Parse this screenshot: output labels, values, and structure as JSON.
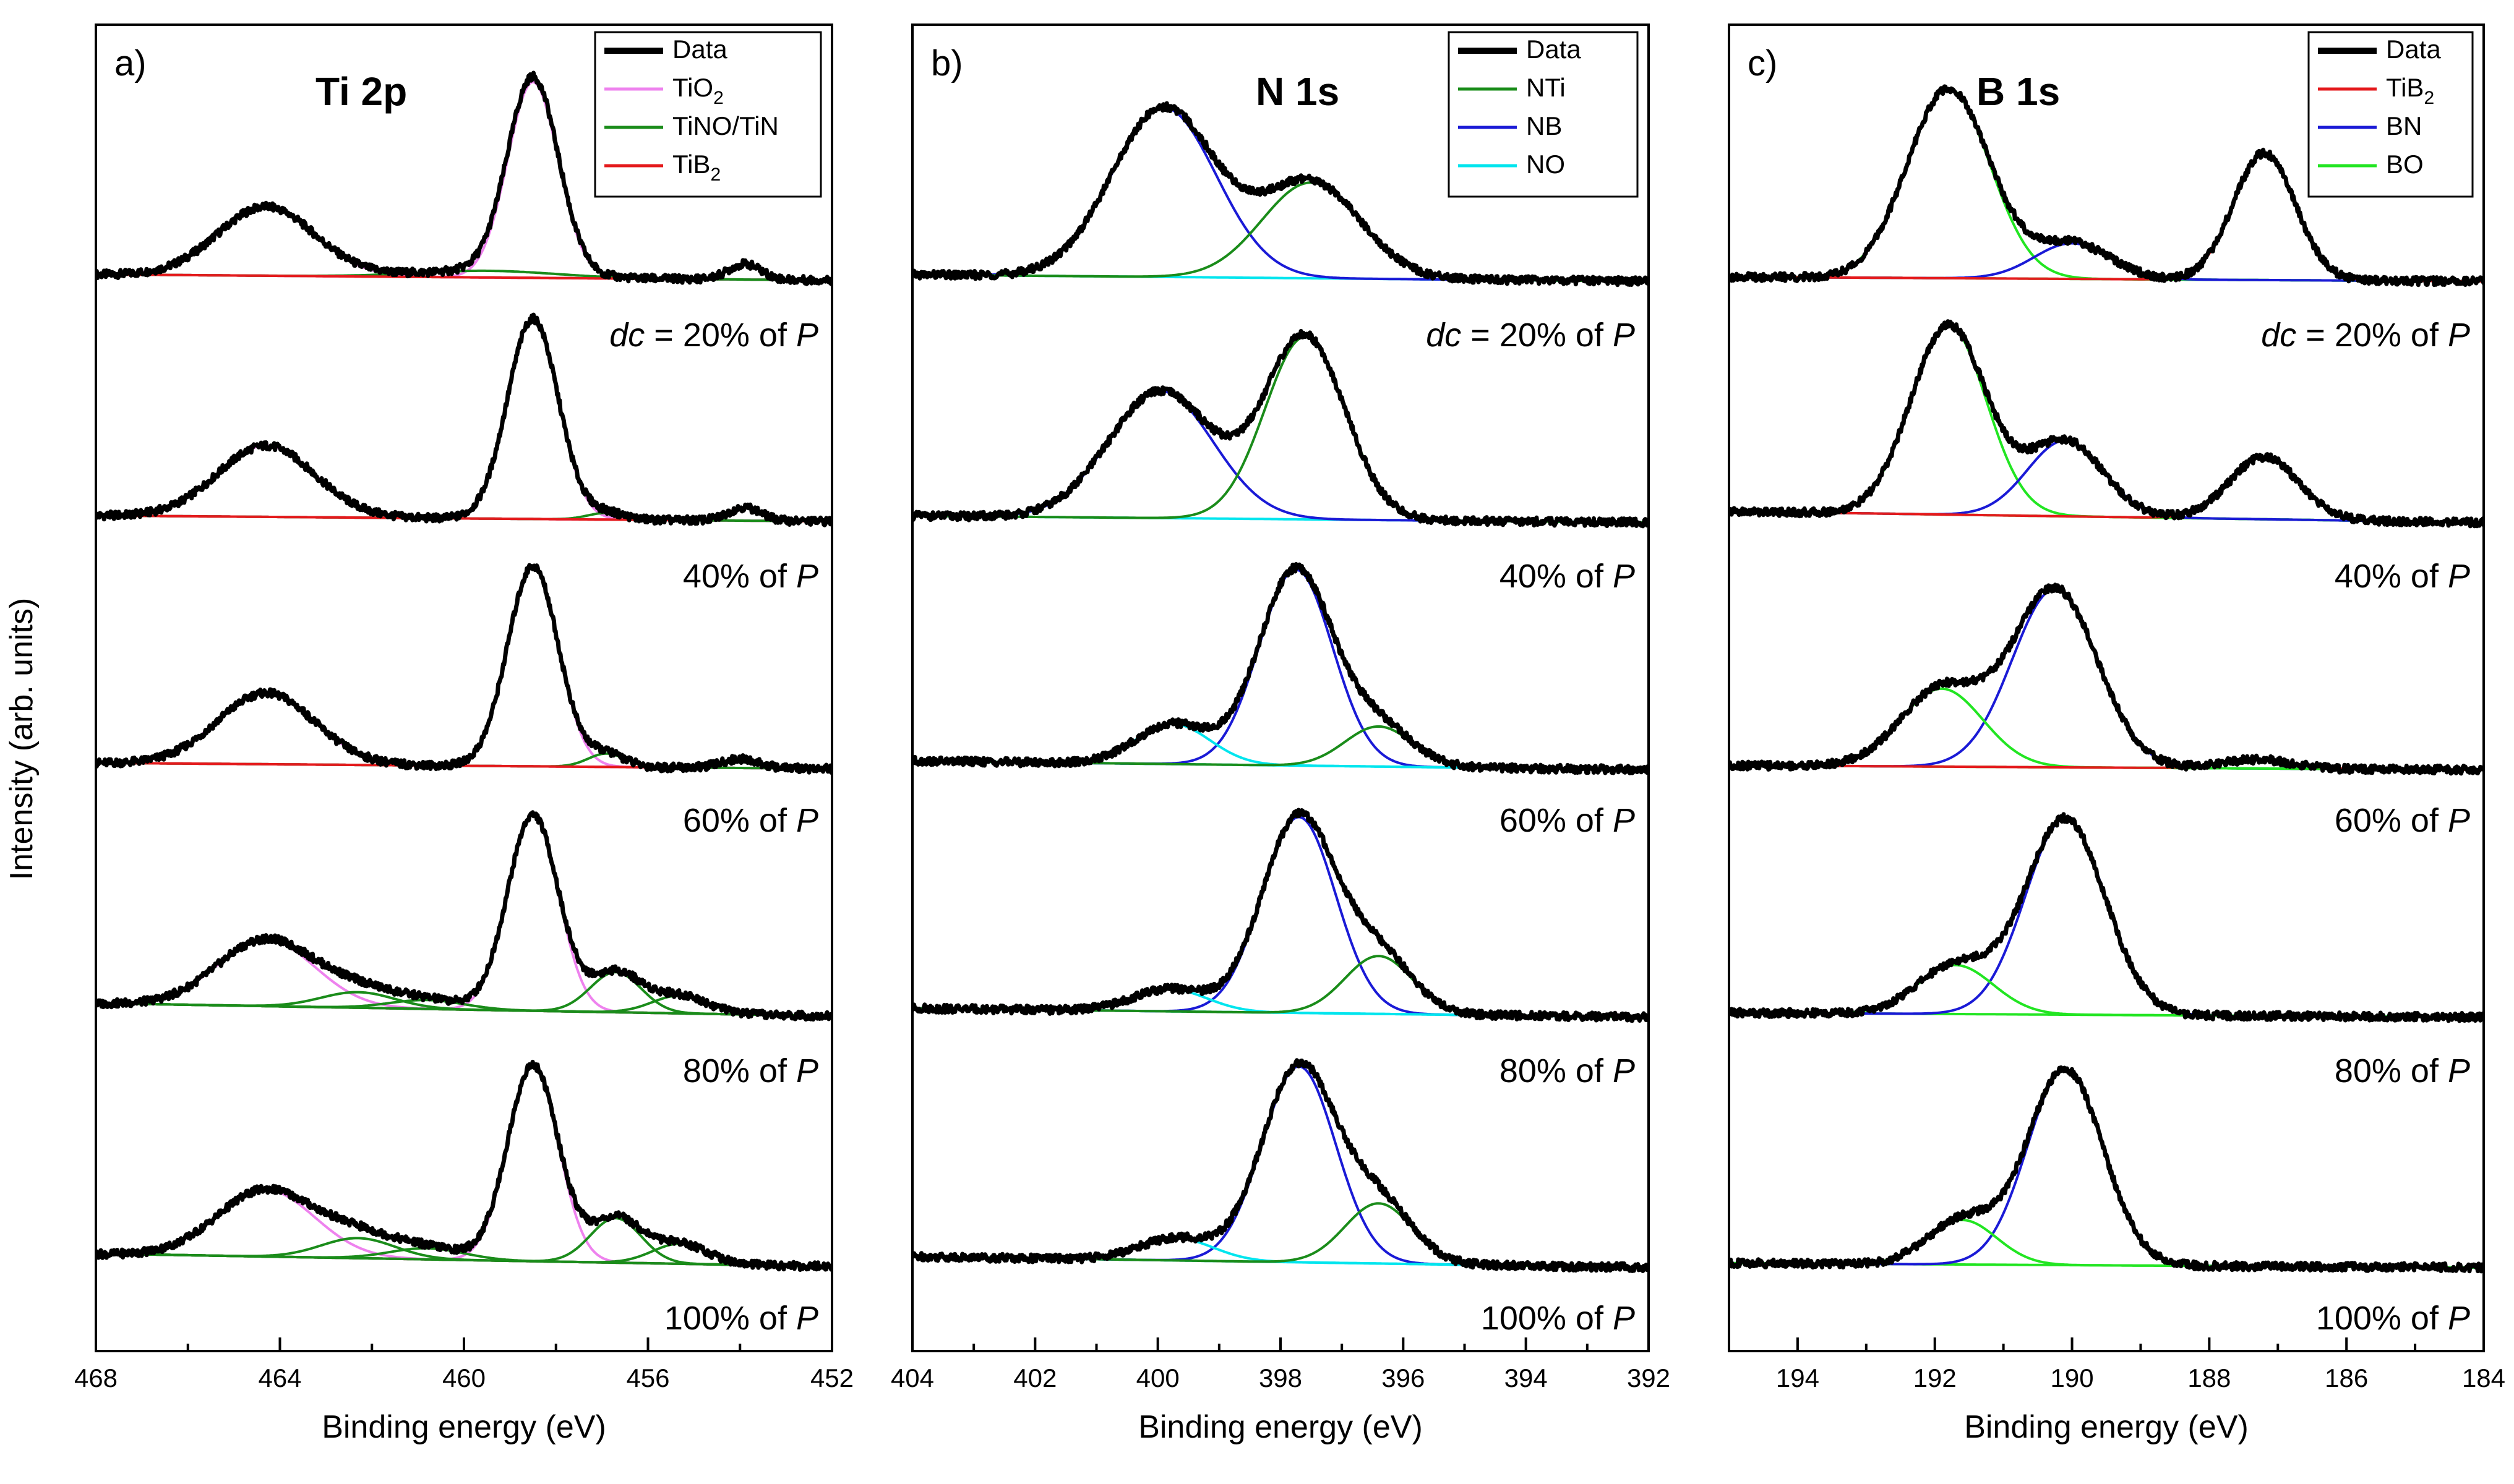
{
  "chart_data": {
    "type": "line",
    "ylabel": "Intensity (arb. units)",
    "trace_labels": [
      {
        "italic_prefix": "dc",
        "text": " = 20% of ",
        "italic_suffix": "P"
      },
      {
        "italic_prefix": "",
        "text": "40% of ",
        "italic_suffix": "P"
      },
      {
        "italic_prefix": "",
        "text": "60% of ",
        "italic_suffix": "P"
      },
      {
        "italic_prefix": "",
        "text": "80% of ",
        "italic_suffix": "P"
      },
      {
        "italic_prefix": "",
        "text": "100% of ",
        "italic_suffix": "P"
      }
    ],
    "panels": [
      {
        "letter": "a)",
        "title": "Ti 2p",
        "xlabel": "Binding energy (eV)",
        "xlim": [
          468,
          452
        ],
        "xticks": [
          468,
          464,
          460,
          456,
          452
        ],
        "legend": [
          {
            "label": "Data",
            "sub": "",
            "color": "#000000"
          },
          {
            "label": "TiO",
            "sub": "2",
            "color": "#ee82ee"
          },
          {
            "label": "TiNO/TiN",
            "sub": "",
            "color": "#1a8c1a"
          },
          {
            "label": "TiB",
            "sub": "2",
            "color": "#e41a1c"
          }
        ],
        "background_color": "#e41a1c",
        "traces": [
          {
            "bg": [
              [
                467.2,
                0.03
              ],
              [
                452,
                0.005
              ]
            ],
            "peaks": [
              {
                "comp": "TiO2",
                "color": "#ee82ee",
                "center": 458.5,
                "height": 0.88,
                "width": 0.55
              },
              {
                "comp": "TiO2",
                "color": "#ee82ee",
                "center": 464.3,
                "height": 0.31,
                "width": 1.05
              },
              {
                "comp": "TiNO/TiN",
                "color": "#1a8c1a",
                "center": 459.5,
                "height": 0.03,
                "width": 1.5
              },
              {
                "comp": "TiB2",
                "color": "#e41a1c",
                "center": 453.9,
                "height": 0.07,
                "width": 0.35
              }
            ]
          },
          {
            "bg": [
              [
                467.2,
                0.03
              ],
              [
                452,
                0.005
              ]
            ],
            "peaks": [
              {
                "comp": "TiO2",
                "color": "#ee82ee",
                "center": 458.5,
                "height": 0.9,
                "width": 0.55
              },
              {
                "comp": "TiO2",
                "color": "#ee82ee",
                "center": 464.3,
                "height": 0.32,
                "width": 1.05
              },
              {
                "comp": "TiNO/TiN",
                "color": "#1a8c1a",
                "center": 456.9,
                "height": 0.03,
                "width": 0.4
              },
              {
                "comp": "TiB2",
                "color": "#e41a1c",
                "center": 453.9,
                "height": 0.06,
                "width": 0.35
              }
            ]
          },
          {
            "bg": [
              [
                467.2,
                0.03
              ],
              [
                452,
                0.005
              ]
            ],
            "peaks": [
              {
                "comp": "TiO2",
                "color": "#ee82ee",
                "center": 458.5,
                "height": 0.9,
                "width": 0.55
              },
              {
                "comp": "TiO2",
                "color": "#ee82ee",
                "center": 464.3,
                "height": 0.32,
                "width": 1.05
              },
              {
                "comp": "TiNO/TiN",
                "color": "#1a8c1a",
                "center": 456.9,
                "height": 0.06,
                "width": 0.4
              },
              {
                "comp": "TiB2",
                "color": "#e41a1c",
                "center": 454.0,
                "height": 0.04,
                "width": 0.4
              }
            ]
          },
          {
            "bg": [
              [
                467.2,
                0.06
              ],
              [
                452,
                0.005
              ]
            ],
            "peaks": [
              {
                "comp": "TiO2",
                "color": "#ee82ee",
                "center": 458.5,
                "height": 0.88,
                "width": 0.55
              },
              {
                "comp": "TiO2",
                "color": "#ee82ee",
                "center": 464.3,
                "height": 0.3,
                "width": 1.05
              },
              {
                "comp": "TiNO/TiN",
                "color": "#1a8c1a",
                "center": 456.7,
                "height": 0.18,
                "width": 0.55
              },
              {
                "comp": "TiNO/TiN",
                "color": "#1a8c1a",
                "center": 462.3,
                "height": 0.07,
                "width": 0.8
              },
              {
                "comp": "TiNO/TiN",
                "color": "#1a8c1a",
                "center": 455.3,
                "height": 0.08,
                "width": 0.6
              },
              {
                "comp": "TiNO/TiN",
                "color": "#1a8c1a",
                "center": 460.8,
                "height": 0.04,
                "width": 0.8
              }
            ]
          },
          {
            "bg": [
              [
                467.2,
                0.06
              ],
              [
                452,
                0.005
              ]
            ],
            "peaks": [
              {
                "comp": "TiO2",
                "color": "#ee82ee",
                "center": 458.5,
                "height": 0.88,
                "width": 0.55
              },
              {
                "comp": "TiO2",
                "color": "#ee82ee",
                "center": 464.3,
                "height": 0.3,
                "width": 1.05
              },
              {
                "comp": "TiNO/TiN",
                "color": "#1a8c1a",
                "center": 456.7,
                "height": 0.2,
                "width": 0.55
              },
              {
                "comp": "TiNO/TiN",
                "color": "#1a8c1a",
                "center": 462.3,
                "height": 0.09,
                "width": 0.8
              },
              {
                "comp": "TiNO/TiN",
                "color": "#1a8c1a",
                "center": 455.3,
                "height": 0.09,
                "width": 0.6
              },
              {
                "comp": "TiNO/TiN",
                "color": "#1a8c1a",
                "center": 460.8,
                "height": 0.05,
                "width": 0.8
              }
            ]
          }
        ]
      },
      {
        "letter": "b)",
        "title": "N 1s",
        "xlabel": "Binding energy (eV)",
        "xlim": [
          404,
          392
        ],
        "xticks": [
          404,
          402,
          400,
          398,
          396,
          394,
          392
        ],
        "legend": [
          {
            "label": "Data",
            "sub": "",
            "color": "#000000"
          },
          {
            "label": "NTi",
            "sub": "",
            "color": "#1a8c1a"
          },
          {
            "label": "NB",
            "sub": "",
            "color": "#1a1ad6"
          },
          {
            "label": "NO",
            "sub": "",
            "color": "#00e5ee"
          }
        ],
        "background_color": "#00e5ee",
        "traces": [
          {
            "bg": [
              [
                404,
                0.03
              ],
              [
                392,
                0.0
              ]
            ],
            "peaks": [
              {
                "comp": "NB",
                "color": "#1a1ad6",
                "center": 399.9,
                "height": 0.76,
                "width": 0.85
              },
              {
                "comp": "NTi",
                "color": "#1a8c1a",
                "center": 397.5,
                "height": 0.43,
                "width": 0.8
              }
            ]
          },
          {
            "bg": [
              [
                404,
                0.03
              ],
              [
                392,
                0.0
              ]
            ],
            "peaks": [
              {
                "comp": "NB",
                "color": "#1a1ad6",
                "center": 399.95,
                "height": 0.57,
                "width": 0.85
              },
              {
                "comp": "NTi",
                "color": "#1a8c1a",
                "center": 397.6,
                "height": 0.82,
                "width": 0.65
              }
            ]
          },
          {
            "bg": [
              [
                404,
                0.04
              ],
              [
                392,
                0.0
              ]
            ],
            "peaks": [
              {
                "comp": "NB",
                "color": "#1a1ad6",
                "center": 397.75,
                "height": 0.88,
                "width": 0.6
              },
              {
                "comp": "NO",
                "color": "#00e5ee",
                "center": 399.75,
                "height": 0.18,
                "width": 0.6
              },
              {
                "comp": "NTi",
                "color": "#1a8c1a",
                "center": 396.4,
                "height": 0.18,
                "width": 0.55
              }
            ]
          },
          {
            "bg": [
              [
                404,
                0.04
              ],
              [
                392,
                0.0
              ]
            ],
            "peaks": [
              {
                "comp": "NB",
                "color": "#1a1ad6",
                "center": 397.7,
                "height": 0.88,
                "width": 0.6
              },
              {
                "comp": "NO",
                "color": "#00e5ee",
                "center": 399.8,
                "height": 0.1,
                "width": 0.6
              },
              {
                "comp": "NTi",
                "color": "#1a8c1a",
                "center": 396.4,
                "height": 0.26,
                "width": 0.55
              }
            ]
          },
          {
            "bg": [
              [
                404,
                0.05
              ],
              [
                392,
                0.0
              ]
            ],
            "peaks": [
              {
                "comp": "NB",
                "color": "#1a1ad6",
                "center": 397.7,
                "height": 0.88,
                "width": 0.6
              },
              {
                "comp": "NO",
                "color": "#00e5ee",
                "center": 399.7,
                "height": 0.1,
                "width": 0.6
              },
              {
                "comp": "NTi",
                "color": "#1a8c1a",
                "center": 396.4,
                "height": 0.27,
                "width": 0.55
              }
            ]
          }
        ]
      },
      {
        "letter": "c)",
        "title": "B 1s",
        "xlabel": "Binding energy (eV)",
        "xlim": [
          195,
          184
        ],
        "xticks": [
          194,
          192,
          190,
          188,
          186,
          184
        ],
        "legend": [
          {
            "label": "Data",
            "sub": "",
            "color": "#000000"
          },
          {
            "label": "TiB",
            "sub": "2",
            "color": "#e41a1c"
          },
          {
            "label": "BN",
            "sub": "",
            "color": "#1a1ad6"
          },
          {
            "label": "BO",
            "sub": "",
            "color": "#22e522"
          }
        ],
        "background_color": "#22e522",
        "traces": [
          {
            "bg": [
              [
                195,
                0.02
              ],
              [
                184,
                0.0
              ]
            ],
            "peaks": [
              {
                "comp": "BO",
                "color": "#22e522",
                "center": 191.8,
                "height": 0.85,
                "width": 0.6
              },
              {
                "comp": "BN",
                "color": "#1a1ad6",
                "center": 190.0,
                "height": 0.16,
                "width": 0.55
              },
              {
                "comp": "TiB2",
                "color": "#e41a1c",
                "center": 187.2,
                "height": 0.57,
                "width": 0.45
              }
            ]
          },
          {
            "bg": [
              [
                195,
                0.05
              ],
              [
                184,
                0.0
              ]
            ],
            "peaks": [
              {
                "comp": "BO",
                "color": "#22e522",
                "center": 191.8,
                "height": 0.85,
                "width": 0.55
              },
              {
                "comp": "BN",
                "color": "#1a1ad6",
                "center": 190.1,
                "height": 0.34,
                "width": 0.55
              },
              {
                "comp": "TiB2",
                "color": "#e41a1c",
                "center": 187.2,
                "height": 0.28,
                "width": 0.5
              }
            ]
          },
          {
            "bg": [
              [
                195,
                0.02
              ],
              [
                184,
                0.0
              ]
            ],
            "peaks": [
              {
                "comp": "BN",
                "color": "#1a1ad6",
                "center": 190.25,
                "height": 0.8,
                "width": 0.62
              },
              {
                "comp": "BO",
                "color": "#22e522",
                "center": 191.9,
                "height": 0.35,
                "width": 0.6
              },
              {
                "comp": "TiB2",
                "color": "#e41a1c",
                "center": 187.3,
                "height": 0.04,
                "width": 0.5
              }
            ]
          },
          {
            "bg": [
              [
                195,
                0.02
              ],
              [
                184,
                0.0
              ]
            ],
            "peaks": [
              {
                "comp": "BN",
                "color": "#1a1ad6",
                "center": 190.1,
                "height": 0.88,
                "width": 0.58
              },
              {
                "comp": "BO",
                "color": "#22e522",
                "center": 191.7,
                "height": 0.22,
                "width": 0.55
              }
            ]
          },
          {
            "bg": [
              [
                195,
                0.02
              ],
              [
                184,
                0.0
              ]
            ],
            "peaks": [
              {
                "comp": "BN",
                "color": "#1a1ad6",
                "center": 190.1,
                "height": 0.88,
                "width": 0.55
              },
              {
                "comp": "BO",
                "color": "#22e522",
                "center": 191.6,
                "height": 0.2,
                "width": 0.5
              }
            ]
          }
        ]
      }
    ]
  }
}
